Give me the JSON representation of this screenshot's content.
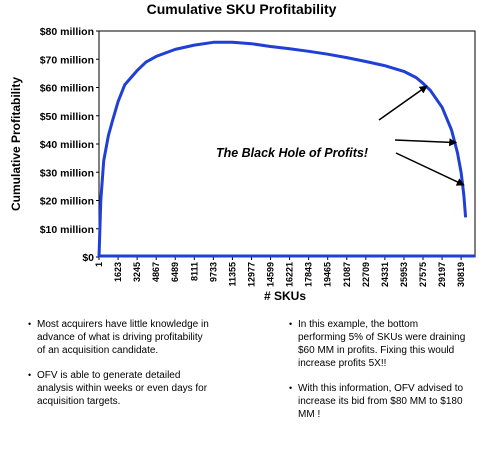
{
  "chart_data": {
    "type": "line",
    "title": "Cumulative SKU Profitability",
    "xlabel": "# SKUs",
    "ylabel": "Cumulative Profitability",
    "y_ticks": [
      "$0",
      "$10 million",
      "$20 million",
      "$30 million",
      "$40 million",
      "$50 million",
      "$60 million",
      "$70 million",
      "$80 million"
    ],
    "ylim": [
      0,
      80
    ],
    "y_unit": "million",
    "x_tick_labels": [
      "1",
      "1623",
      "3245",
      "4867",
      "6489",
      "8111",
      "9733",
      "11355",
      "12977",
      "14599",
      "16221",
      "17843",
      "19465",
      "21087",
      "22709",
      "24331",
      "25953",
      "27575",
      "29197",
      "30819"
    ],
    "xlim": [
      1,
      32000
    ],
    "grid": false,
    "series": [
      {
        "color": "#1f3fd6",
        "x": [
          1,
          150,
          400,
          800,
          1200,
          1623,
          2200,
          3245,
          4000,
          4867,
          6489,
          8111,
          9733,
          11355,
          12977,
          14599,
          16221,
          17843,
          19465,
          21087,
          22709,
          24331,
          25953,
          27000,
          27575,
          28200,
          29197,
          30000,
          30500,
          30819,
          31050,
          31200
        ],
        "y": [
          0,
          20,
          34,
          43,
          49,
          55,
          61,
          66,
          69,
          71,
          73.5,
          75,
          76,
          76,
          75.5,
          74.5,
          73.7,
          72.8,
          71.8,
          70.6,
          69.2,
          67.7,
          65.7,
          63.5,
          61.5,
          59,
          53,
          45,
          37,
          30,
          22,
          14
        ]
      }
    ],
    "annotation": {
      "text": "The Black Hole of Profits!",
      "arrow_targets": [
        {
          "x": 27900,
          "y": 60.5
        },
        {
          "x": 30400,
          "y": 40.5
        },
        {
          "x": 31050,
          "y": 25.5
        }
      ]
    }
  },
  "notes": {
    "left": [
      "Most acquirers have little knowledge in advance of what is driving profitability of an acquisition candidate.",
      "OFV is able to generate detailed analysis within weeks or even days for acquisition targets."
    ],
    "right": [
      "In this example, the bottom performing 5% of SKUs were draining $60 MM in profits. Fixing this would increase profits 5X!!",
      "With this information, OFV advised to increase its bid from $80 MM to $180 MM !"
    ]
  }
}
